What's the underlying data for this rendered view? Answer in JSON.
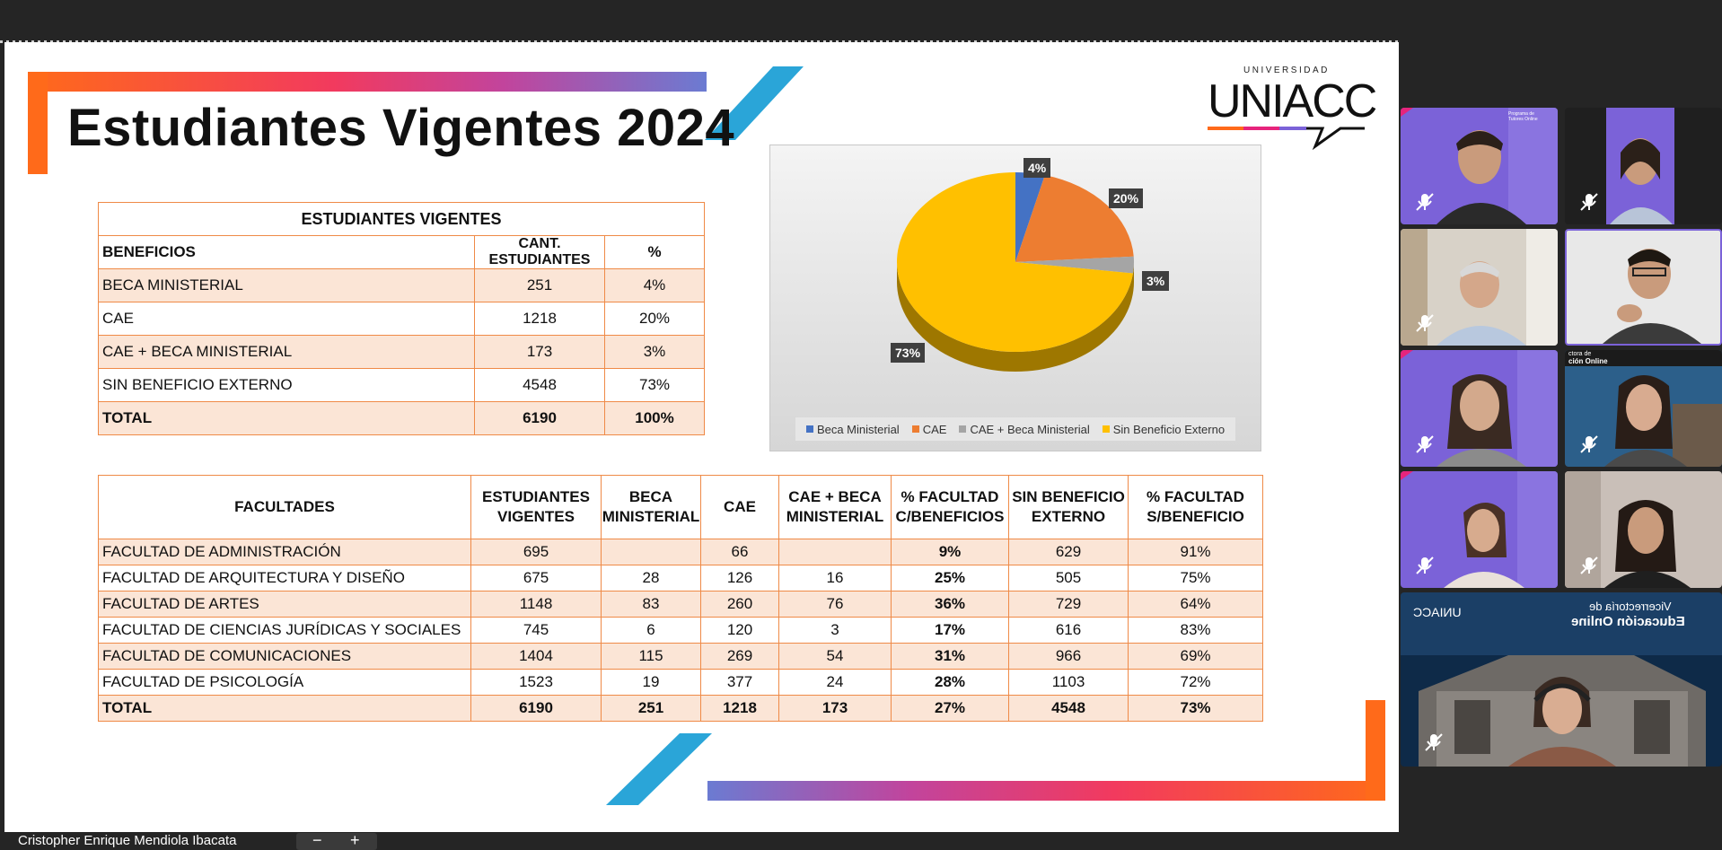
{
  "slide": {
    "title": "Estudiantes Vigentes 2024",
    "logo_small": "UNIVERSIDAD",
    "logo_main": "UNIACC"
  },
  "summary_table": {
    "caption": "ESTUDIANTES VIGENTES",
    "headers": [
      "BENEFICIOS",
      "CANT. ESTUDIANTES",
      "%"
    ],
    "rows": [
      [
        "BECA MINISTERIAL",
        "251",
        "4%"
      ],
      [
        "CAE",
        "1218",
        "20%"
      ],
      [
        "CAE + BECA MINISTERIAL",
        "173",
        "3%"
      ],
      [
        "SIN BENEFICIO EXTERNO",
        "4548",
        "73%"
      ]
    ],
    "total": [
      "TOTAL",
      "6190",
      "100%"
    ]
  },
  "faculty_table": {
    "headers": [
      "FACULTADES",
      "ESTUDIANTES VIGENTES",
      "BECA MINISTERIAL",
      "CAE",
      "CAE + BECA MINISTERIAL",
      "% FACULTAD C/BENEFICIOS",
      "SIN BENEFICIO EXTERNO",
      "% FACULTAD S/BENEFICIO"
    ],
    "rows": [
      [
        "FACULTAD DE ADMINISTRACIÓN",
        "695",
        "",
        "66",
        "",
        "9%",
        "629",
        "91%"
      ],
      [
        "FACULTAD DE ARQUITECTURA Y DISEÑO",
        "675",
        "28",
        "126",
        "16",
        "25%",
        "505",
        "75%"
      ],
      [
        "FACULTAD DE ARTES",
        "1148",
        "83",
        "260",
        "76",
        "36%",
        "729",
        "64%"
      ],
      [
        "FACULTAD DE CIENCIAS JURÍDICAS Y SOCIALES",
        "745",
        "6",
        "120",
        "3",
        "17%",
        "616",
        "83%"
      ],
      [
        "FACULTAD DE COMUNICACIONES",
        "1404",
        "115",
        "269",
        "54",
        "31%",
        "966",
        "69%"
      ],
      [
        "FACULTAD DE PSICOLOGÍA",
        "1523",
        "19",
        "377",
        "24",
        "28%",
        "1103",
        "72%"
      ]
    ],
    "total": [
      "TOTAL",
      "6190",
      "251",
      "1218",
      "173",
      "27%",
      "4548",
      "73%"
    ]
  },
  "chart_data": {
    "type": "pie",
    "categories": [
      "Beca Ministerial",
      "CAE",
      "CAE + Beca Ministerial",
      "Sin Beneficio Externo"
    ],
    "values": [
      4,
      20,
      3,
      73
    ],
    "labels": [
      "4%",
      "20%",
      "3%",
      "73%"
    ],
    "colors": [
      "#4472c4",
      "#ed7d31",
      "#a5a5a5",
      "#ffc000"
    ],
    "legend": "bottom"
  },
  "video_panel": {
    "participants": [
      {
        "muted": true
      },
      {
        "muted": true
      },
      {
        "muted": true
      },
      {
        "muted": false
      },
      {
        "muted": true
      },
      {
        "muted": true
      },
      {
        "muted": true
      },
      {
        "muted": true
      },
      {
        "muted": true
      }
    ],
    "background_texts": {
      "tile_program": "Programa de Tutores Online",
      "tile_vice": "ción Online",
      "tile_vice_top": "ctora de",
      "banner_line1": "Vicerrectoría de",
      "banner_line2": "Educación Online",
      "banner_logo": "UNIACC"
    }
  },
  "footer": {
    "presenter_name": "Cristopher Enrique Mendiola Ibacata"
  },
  "colors": {
    "accent_orange": "#ff6a1a",
    "accent_pink": "#e6247c",
    "accent_purple": "#7b62d8",
    "accent_blue": "#2aa5d8",
    "table_border": "#ef8a47",
    "table_shade": "#fbe5d6"
  }
}
